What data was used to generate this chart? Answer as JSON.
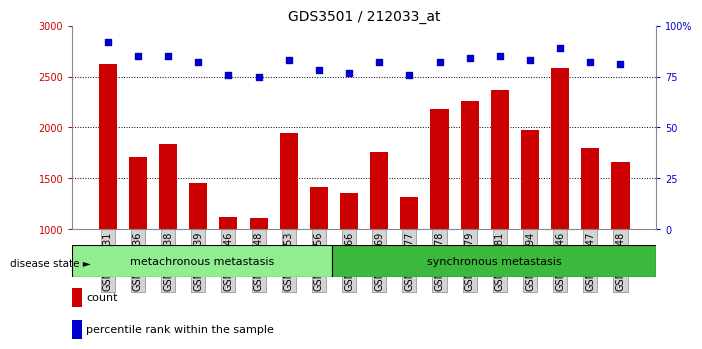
{
  "title": "GDS3501 / 212033_at",
  "samples": [
    "GSM277231",
    "GSM277236",
    "GSM277238",
    "GSM277239",
    "GSM277246",
    "GSM277248",
    "GSM277253",
    "GSM277256",
    "GSM277466",
    "GSM277469",
    "GSM277477",
    "GSM277478",
    "GSM277479",
    "GSM277481",
    "GSM277494",
    "GSM277646",
    "GSM277647",
    "GSM277648"
  ],
  "counts": [
    2620,
    1710,
    1840,
    1450,
    1120,
    1115,
    1950,
    1420,
    1360,
    1755,
    1320,
    2185,
    2265,
    2365,
    1975,
    2580,
    1800,
    1665
  ],
  "percentiles": [
    92,
    85,
    85,
    82,
    76,
    75,
    83,
    78,
    77,
    82,
    76,
    82,
    84,
    85,
    83,
    89,
    82,
    81
  ],
  "bar_color": "#cc0000",
  "dot_color": "#0000cc",
  "ylim_left": [
    1000,
    3000
  ],
  "ylim_right": [
    0,
    100
  ],
  "yticks_left": [
    1000,
    1500,
    2000,
    2500,
    3000
  ],
  "yticks_right": [
    0,
    25,
    50,
    75,
    100
  ],
  "yticklabels_right": [
    "0",
    "25",
    "50",
    "75",
    "100%"
  ],
  "group1_label": "metachronous metastasis",
  "group2_label": "synchronous metastasis",
  "group1_count": 8,
  "group2_count": 10,
  "disease_state_label": "disease state",
  "legend_count_label": "count",
  "legend_percentile_label": "percentile rank within the sample",
  "bg_color": "#ffffff",
  "plot_bg_color": "#ffffff",
  "xticklabel_bg": "#d3d3d3",
  "group1_color": "#90ee90",
  "group2_color": "#3cb83c",
  "grid_line_color": "#000000",
  "tick_label_fontsize": 7,
  "title_fontsize": 10
}
